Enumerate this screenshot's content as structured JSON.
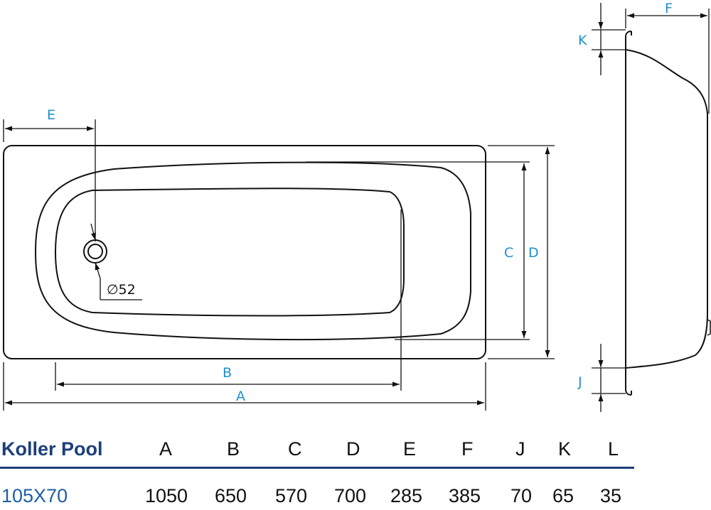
{
  "diagram": {
    "labels": {
      "E": "E",
      "B": "B",
      "A": "A",
      "C": "C",
      "D": "D",
      "F": "F",
      "K": "K",
      "J": "J",
      "drain": "∅52"
    }
  },
  "table": {
    "header": {
      "model": "Koller Pool",
      "cols": [
        "A",
        "B",
        "C",
        "D",
        "E",
        "F",
        "J",
        "K",
        "L"
      ]
    },
    "row": {
      "model": "105X70",
      "values": [
        "1050",
        "650",
        "570",
        "700",
        "285",
        "385",
        "70",
        "65",
        "35"
      ]
    },
    "rule_color": "#1d3f7a"
  },
  "colors": {
    "dimension_label": "#1f8fd0",
    "outline": "#111111"
  }
}
